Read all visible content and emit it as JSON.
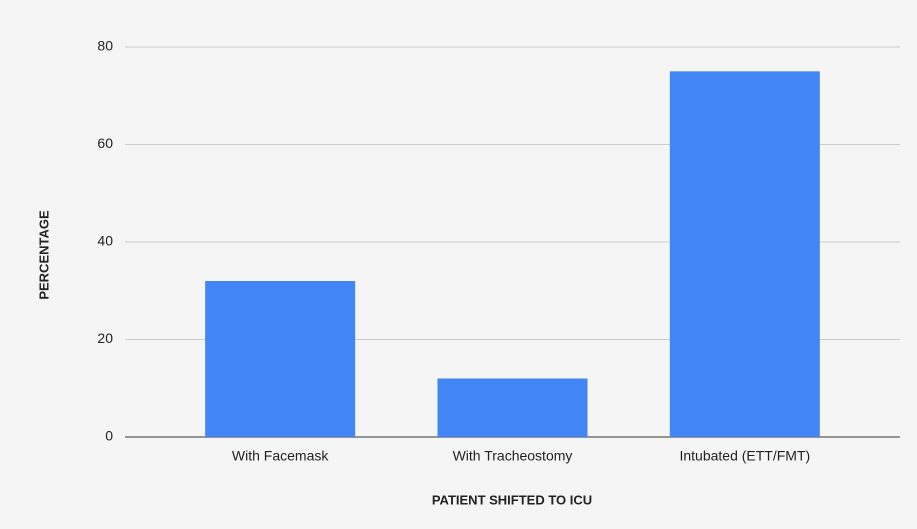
{
  "chart_data": {
    "type": "bar",
    "x_label": "PATIENT SHIFTED TO ICU",
    "y_label": "PERCENTAGE",
    "categories": [
      "With Facemask",
      "With Tracheostomy",
      "Intubated (ETT/FMT)"
    ],
    "values": [
      32,
      12,
      75
    ],
    "color": "#4285f4",
    "ylim": [
      0,
      80
    ],
    "yticks": [
      0,
      20,
      40,
      60,
      80
    ],
    "grid": true
  }
}
